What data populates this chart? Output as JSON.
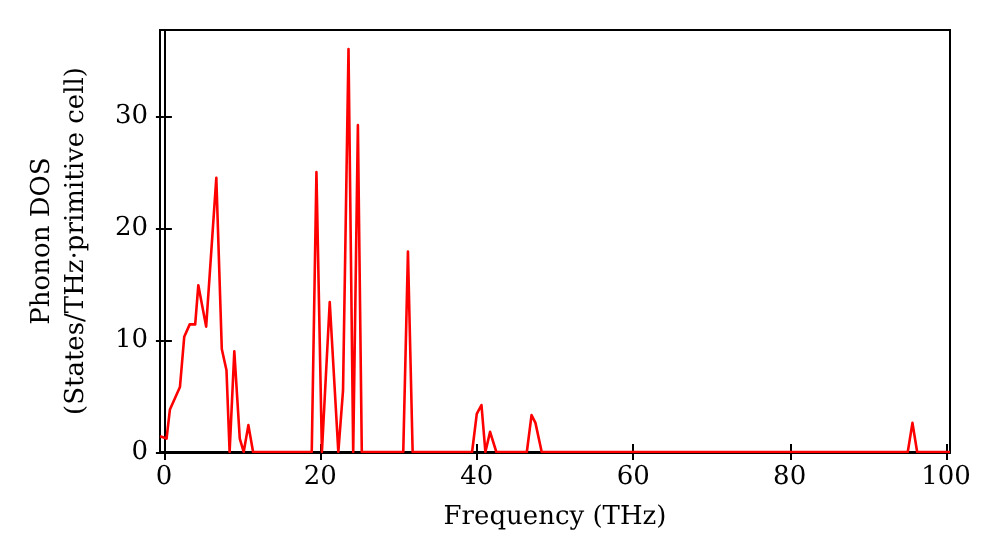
{
  "chart_data": {
    "type": "line",
    "xlabel": "Frequency (THz)",
    "ylabel": "Phonon DOS\n(States/THz·primitive cell)",
    "xlim": [
      -0.5,
      100.5
    ],
    "ylim": [
      0,
      37.7
    ],
    "xticks": [
      0,
      20,
      40,
      60,
      80,
      100
    ],
    "yticks": [
      0,
      10,
      20,
      30
    ],
    "grid": false,
    "marker": "none",
    "line_style": "solid",
    "series": [
      {
        "color": "#ff0000",
        "x": [
          -0.5,
          0.34,
          0.77,
          2.05,
          2.6,
          3.3,
          4.0,
          4.4,
          5.4,
          6.7,
          7.4,
          8.0,
          8.4,
          9.0,
          9.7,
          10.2,
          10.8,
          11.4,
          18.9,
          19.5,
          20.2,
          21.2,
          22.3,
          22.9,
          23.6,
          24.2,
          24.8,
          25.3,
          30.6,
          31.2,
          31.8,
          39.4,
          40.0,
          40.6,
          41.1,
          41.7,
          42.5,
          46.4,
          47.0,
          47.5,
          48.3,
          95.1,
          95.7,
          96.3,
          100.5
        ],
        "values": [
          1.4,
          1.2,
          3.8,
          5.8,
          10.3,
          11.4,
          11.4,
          14.9,
          11.2,
          24.5,
          9.2,
          7.3,
          0,
          9.0,
          1.2,
          0,
          2.4,
          0,
          0,
          25.0,
          0,
          13.4,
          0,
          5.5,
          36.0,
          0,
          29.2,
          0,
          0,
          17.9,
          0,
          0,
          3.4,
          4.2,
          0,
          1.8,
          0,
          0,
          3.3,
          2.6,
          0,
          0,
          2.6,
          0,
          0
        ]
      }
    ]
  }
}
